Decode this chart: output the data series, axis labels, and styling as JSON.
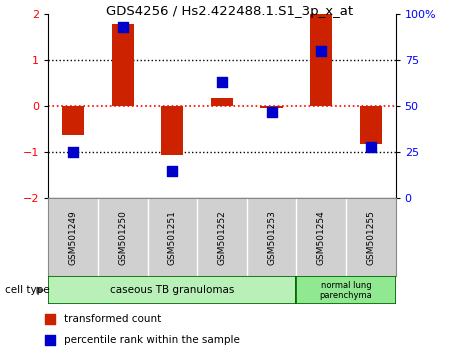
{
  "title": "GDS4256 / Hs2.422488.1.S1_3p_x_at",
  "samples": [
    "GSM501249",
    "GSM501250",
    "GSM501251",
    "GSM501252",
    "GSM501253",
    "GSM501254",
    "GSM501255"
  ],
  "red_values": [
    -0.62,
    1.78,
    -1.05,
    0.18,
    -0.04,
    2.0,
    -0.82
  ],
  "blue_values": [
    25,
    93,
    15,
    63,
    47,
    80,
    28
  ],
  "ylim_left": [
    -2,
    2
  ],
  "ylim_right": [
    0,
    100
  ],
  "yticks_left": [
    -2,
    -1,
    0,
    1,
    2
  ],
  "yticks_right": [
    0,
    25,
    50,
    75,
    100
  ],
  "ytick_labels_right": [
    "0",
    "25",
    "50",
    "75",
    "100%"
  ],
  "bar_color": "#cc2200",
  "dot_color": "#0000cc",
  "bar_width": 0.45,
  "dot_size": 55,
  "group1_label": "caseous TB granulomas",
  "group2_label": "normal lung\nparenchyma",
  "group1_color": "#b8f0b8",
  "group2_color": "#90e890",
  "cell_type_label": "cell type",
  "legend_red": "transformed count",
  "legend_blue": "percentile rank within the sample",
  "bg_color": "#ffffff",
  "plot_bg": "#ffffff",
  "sample_box_color": "#d0d0d0",
  "sample_border_color": "#888888",
  "group_border_color": "#006600"
}
